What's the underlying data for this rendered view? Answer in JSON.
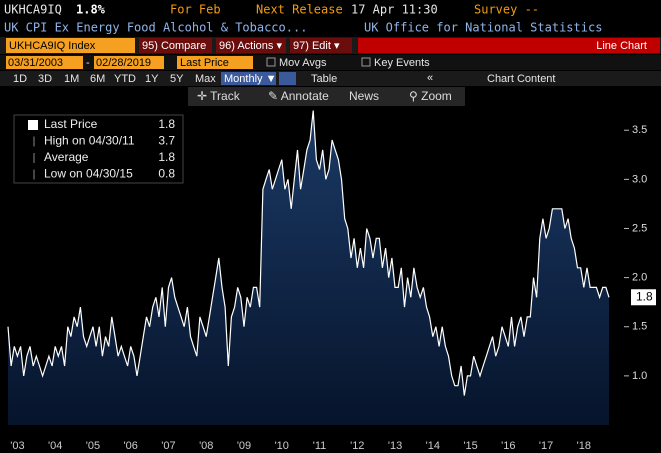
{
  "header": {
    "ticker": "UKHCA9IQ",
    "value": "1.8%",
    "period": "For Feb",
    "next_release_label": "Next Release",
    "next_release": "17 Apr 11:30",
    "survey": "Survey --",
    "description": "UK CPI Ex Energy Food Alcohol & Tobacco...",
    "source": "UK Office for National Statistics"
  },
  "toolbar": {
    "security": "UKHCA9IQ Index",
    "buttons": [
      "95) Compare",
      "96) Actions ▾",
      "97) Edit ▾"
    ],
    "chart_type": "Line Chart"
  },
  "range": {
    "start": "03/31/2003",
    "separator": "-",
    "end": "02/28/2019",
    "field": "Last Price",
    "mov_avgs": "Mov Avgs",
    "key_events": "Key Events"
  },
  "periods": [
    "1D",
    "3D",
    "1M",
    "6M",
    "YTD",
    "1Y",
    "5Y",
    "Max"
  ],
  "frequency": "Monthly ▼",
  "table": "Table",
  "collapse": "«",
  "chart_content": "Chart Content",
  "tools": [
    "✛ Track",
    "✎ Annotate",
    "News",
    "⚲ Zoom"
  ],
  "legend": [
    {
      "label": "Last Price",
      "value": 1.8
    },
    {
      "label": "High on 04/30/11",
      "value": 3.7
    },
    {
      "label": "Average",
      "value": 1.8
    },
    {
      "label": "Low on 04/30/15",
      "value": 0.8
    }
  ],
  "chart_data": {
    "type": "area",
    "color": "#ffffff",
    "fill": "#0c2244",
    "categories": [
      null,
      null,
      null,
      "'03",
      null,
      null,
      null,
      null,
      null,
      null,
      null,
      null,
      null,
      null,
      null,
      "'04",
      null,
      null,
      null,
      null,
      null,
      null,
      null,
      null,
      null,
      null,
      null,
      "'05",
      null,
      null,
      null,
      null,
      null,
      null,
      null,
      null,
      null,
      null,
      null,
      "'06",
      null,
      null,
      null,
      null,
      null,
      null,
      null,
      null,
      null,
      null,
      null,
      "'07",
      null,
      null,
      null,
      null,
      null,
      null,
      null,
      null,
      null,
      null,
      null,
      "'08",
      null,
      null,
      null,
      null,
      null,
      null,
      null,
      null,
      null,
      null,
      null,
      "'09",
      null,
      null,
      null,
      null,
      null,
      null,
      null,
      null,
      null,
      null,
      null,
      "'10",
      null,
      null,
      null,
      null,
      null,
      null,
      null,
      null,
      null,
      null,
      null,
      "'11",
      null,
      null,
      null,
      null,
      null,
      null,
      null,
      null,
      null,
      null,
      null,
      "'12",
      null,
      null,
      null,
      null,
      null,
      null,
      null,
      null,
      null,
      null,
      null,
      "'13",
      null,
      null,
      null,
      null,
      null,
      null,
      null,
      null,
      null,
      null,
      null,
      "'14",
      null,
      null,
      null,
      null,
      null,
      null,
      null,
      null,
      null,
      null,
      null,
      "'15",
      null,
      null,
      null,
      null,
      null,
      null,
      null,
      null,
      null,
      null,
      null,
      "'16",
      null,
      null,
      null,
      null,
      null,
      null,
      null,
      null,
      null,
      null,
      null,
      "'17",
      null,
      null,
      null,
      null,
      null,
      null,
      null,
      null,
      null,
      null,
      null,
      "'18",
      null,
      null,
      null,
      null,
      null,
      null,
      null,
      null
    ],
    "values": [
      1.5,
      1.1,
      1.3,
      1.2,
      1.3,
      1.0,
      1.2,
      1.3,
      1.1,
      1.2,
      1.1,
      1.0,
      1.1,
      1.2,
      1.1,
      1.3,
      1.2,
      1.3,
      1.1,
      1.5,
      1.4,
      1.6,
      1.5,
      1.7,
      1.4,
      1.3,
      1.4,
      1.5,
      1.3,
      1.5,
      1.2,
      1.4,
      1.3,
      1.6,
      1.4,
      1.2,
      1.3,
      1.2,
      1.1,
      1.3,
      1.2,
      1.0,
      1.2,
      1.4,
      1.6,
      1.5,
      1.7,
      1.8,
      1.6,
      1.9,
      1.5,
      1.9,
      2.0,
      1.8,
      1.7,
      1.6,
      1.5,
      1.7,
      1.4,
      1.3,
      1.2,
      1.6,
      1.5,
      1.4,
      1.6,
      1.8,
      2.0,
      2.2,
      1.9,
      1.7,
      1.1,
      1.6,
      1.7,
      1.9,
      1.8,
      1.5,
      1.8,
      1.7,
      1.9,
      1.9,
      1.7,
      2.9,
      3.0,
      3.1,
      2.9,
      3.0,
      3.1,
      3.2,
      2.9,
      3.0,
      2.7,
      3.0,
      3.3,
      2.9,
      3.1,
      3.3,
      3.4,
      3.7,
      3.2,
      3.1,
      3.3,
      3.0,
      3.1,
      3.4,
      3.3,
      3.2,
      3.0,
      2.6,
      2.5,
      2.2,
      2.4,
      2.1,
      2.3,
      2.1,
      2.5,
      2.4,
      2.2,
      2.4,
      2.4,
      2.1,
      2.3,
      2.0,
      2.2,
      1.9,
      1.9,
      2.1,
      1.7,
      2.0,
      1.8,
      2.1,
      1.9,
      1.8,
      1.9,
      1.7,
      1.6,
      1.4,
      1.5,
      1.3,
      1.5,
      1.3,
      1.2,
      1.0,
      0.9,
      0.9,
      1.1,
      0.8,
      1.0,
      1.0,
      1.2,
      1.1,
      1.0,
      1.1,
      1.2,
      1.3,
      1.4,
      1.2,
      1.3,
      1.5,
      1.4,
      1.3,
      1.6,
      1.3,
      1.5,
      1.6,
      1.4,
      1.6,
      1.6,
      2.0,
      1.8,
      2.4,
      2.6,
      2.4,
      2.5,
      2.7,
      2.7,
      2.7,
      2.7,
      2.5,
      2.6,
      2.4,
      2.3,
      2.1,
      2.1,
      1.9,
      2.1,
      1.9,
      1.9,
      1.9,
      1.8,
      1.9,
      1.9,
      1.8
    ],
    "ylim": [
      0.5,
      3.95
    ],
    "yticks": [
      {
        "value": 1.0,
        "label": "1.0"
      },
      {
        "value": 1.5,
        "label": "1.5"
      },
      {
        "value": 2.0,
        "label": "2.0"
      },
      {
        "value": 2.5,
        "label": "2.5"
      },
      {
        "value": 3.0,
        "label": "3.0"
      },
      {
        "value": 3.5,
        "label": "3.5"
      }
    ]
  }
}
